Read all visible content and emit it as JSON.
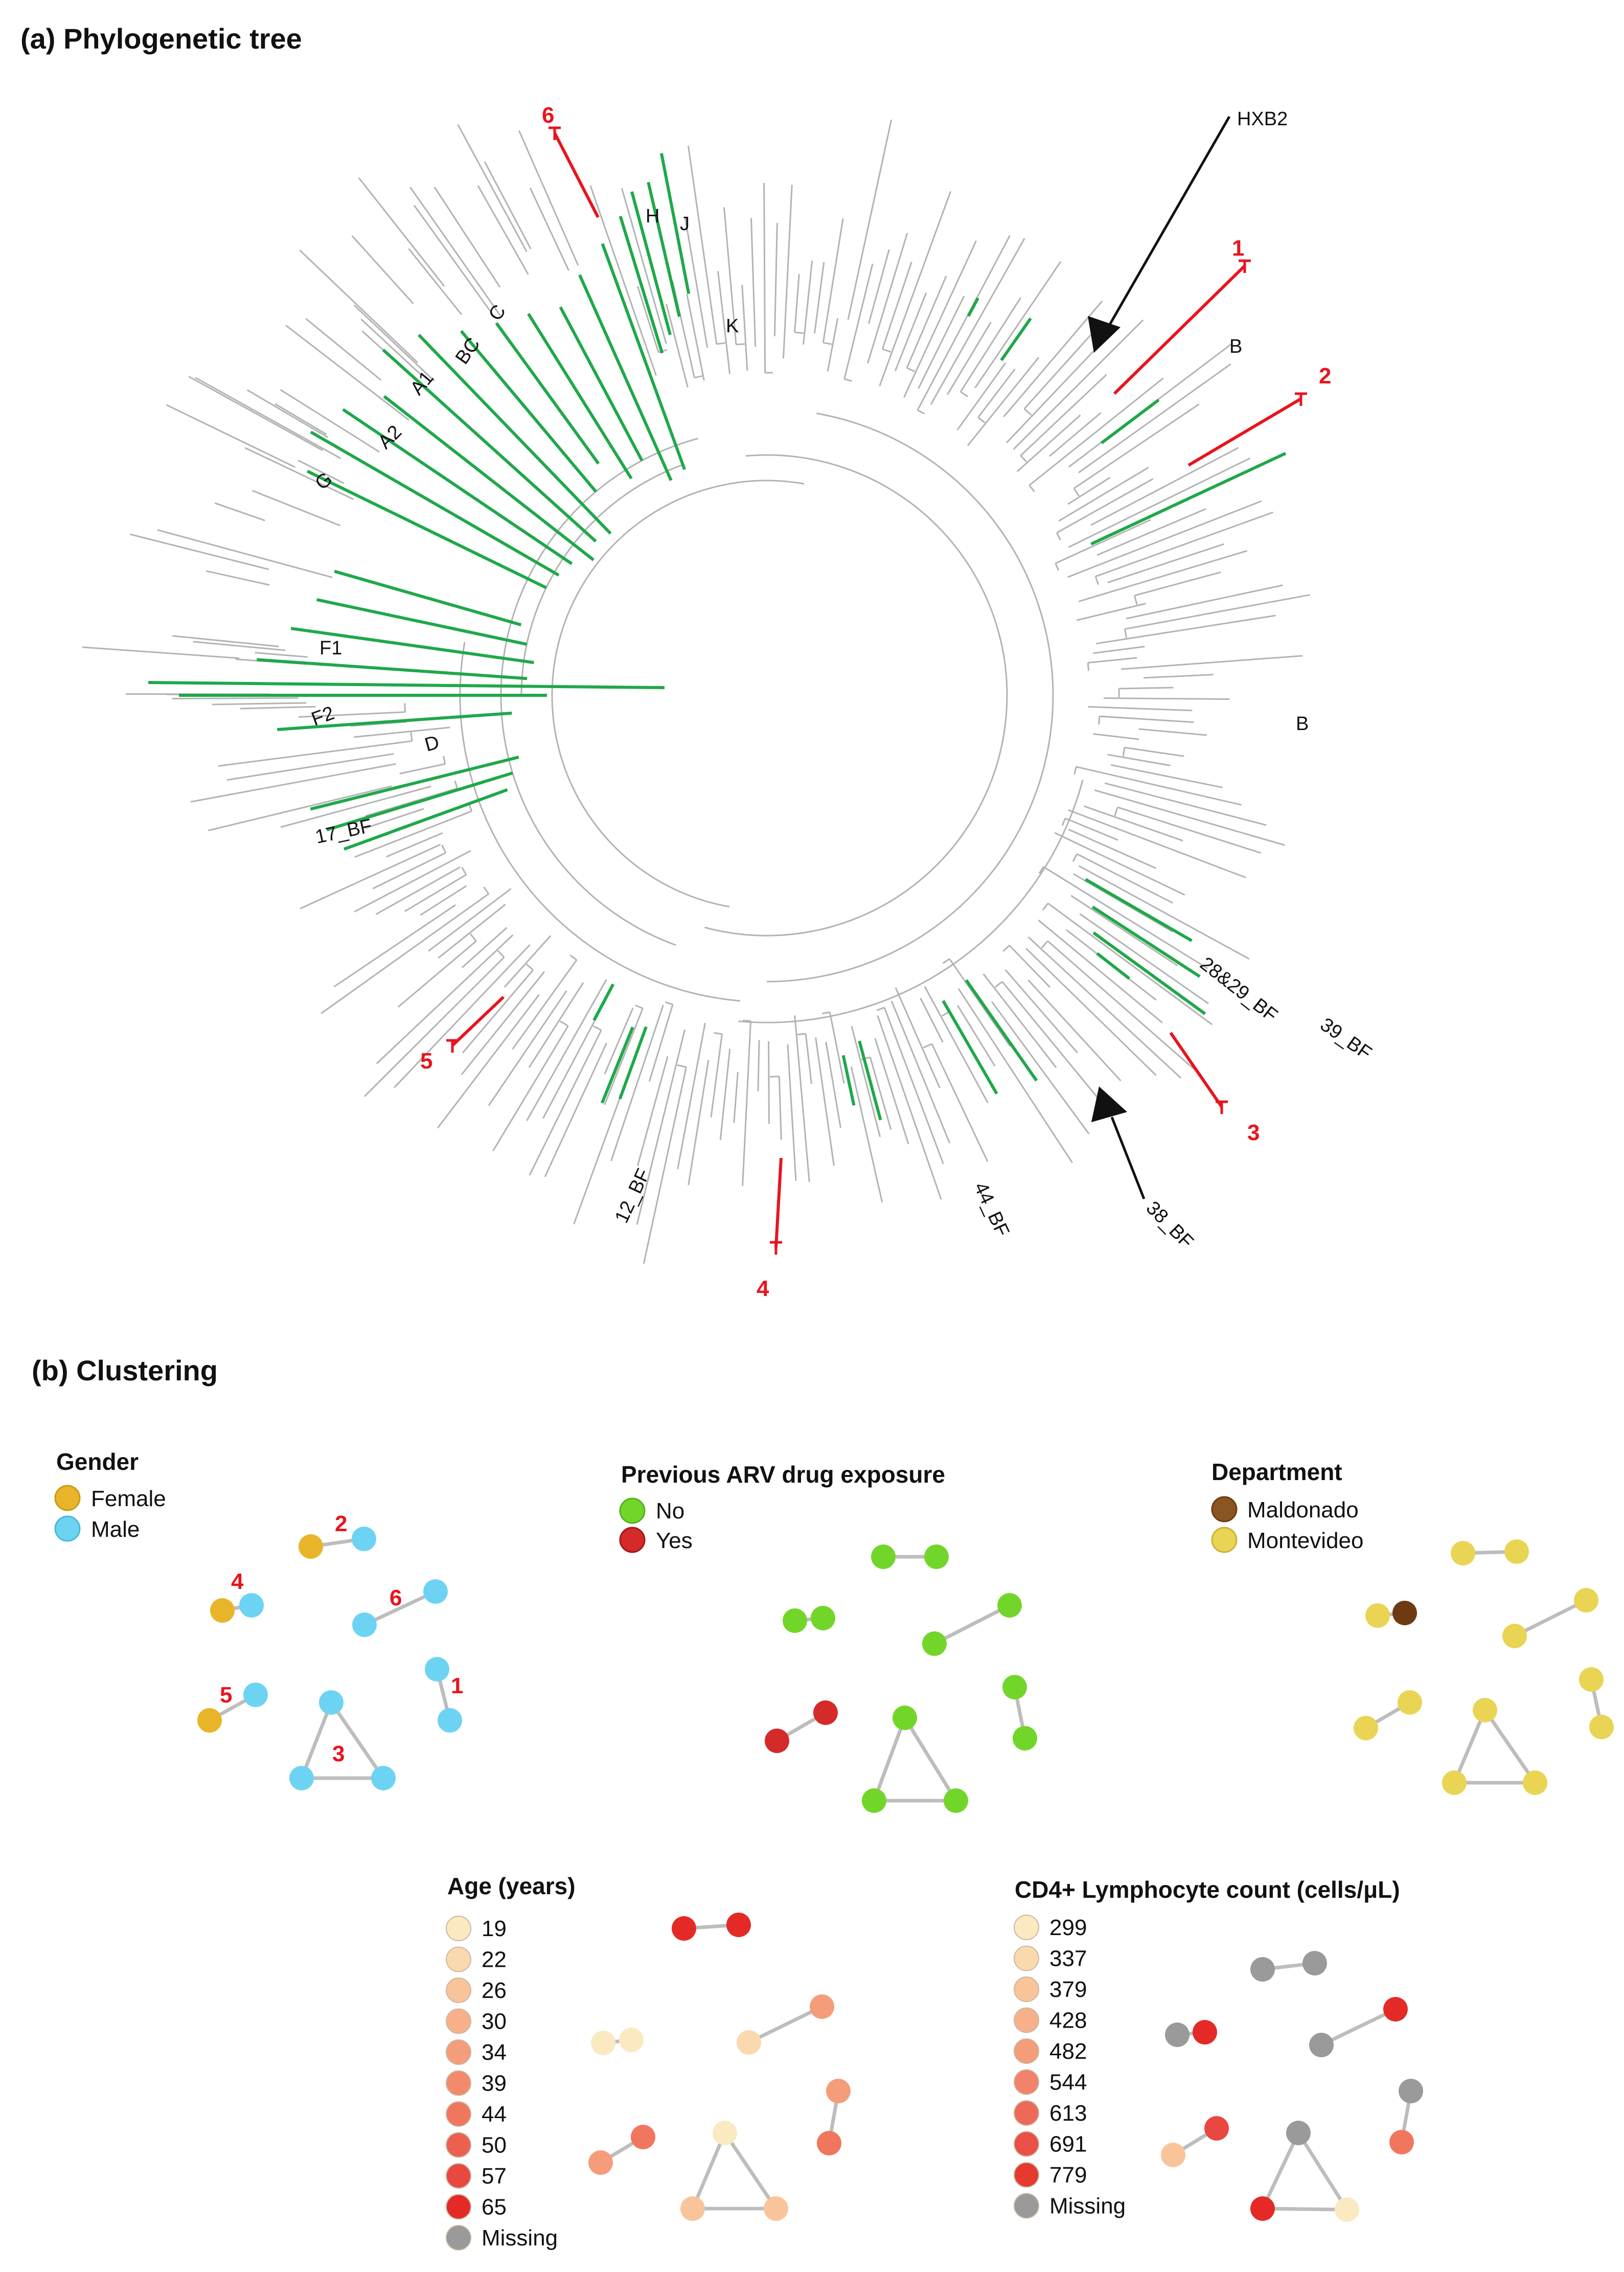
{
  "colors": {
    "gray_branch": "#b3b3b3",
    "green_branch": "#1fa84a",
    "red_branch": "#e8141e",
    "black": "#111111",
    "edge": "#bdbdbd"
  },
  "panel_a": {
    "title": "(a) Phylogenetic tree",
    "subtype_labels": [
      "H",
      "J",
      "K",
      "C",
      "BC",
      "A1",
      "A2",
      "G",
      "F1",
      "F2",
      "D",
      "17_BF",
      "12_BF",
      "44_BF",
      "38_BF",
      "28&29_BF",
      "39_BF",
      "B",
      "B"
    ],
    "reference_label": "HXB2",
    "cluster_labels": [
      "1",
      "2",
      "3",
      "4",
      "5",
      "6"
    ]
  },
  "panel_b": {
    "title": "(b) Clustering",
    "gender": {
      "title": "Gender",
      "legend": [
        {
          "label": "Female",
          "color": "#e8b52a"
        },
        {
          "label": "Male",
          "color": "#6dd3f2"
        }
      ],
      "cluster_labels": [
        "2",
        "4",
        "6",
        "5",
        "1",
        "3"
      ]
    },
    "arv": {
      "title": "Previous ARV drug exposure",
      "legend": [
        {
          "label": "No",
          "color": "#72d62a"
        },
        {
          "label": "Yes",
          "color": "#d42a2a"
        }
      ]
    },
    "department": {
      "title": "Department",
      "legend": [
        {
          "label": "Maldonado",
          "color": "#8a5520"
        },
        {
          "label": "Montevideo",
          "color": "#e9d454"
        }
      ]
    },
    "age": {
      "title": "Age (years)",
      "legend": [
        {
          "label": "19",
          "color": "#fbe9c2"
        },
        {
          "label": "22",
          "color": "#fbd9ae"
        },
        {
          "label": "26",
          "color": "#f9c49a"
        },
        {
          "label": "30",
          "color": "#f7b08a"
        },
        {
          "label": "34",
          "color": "#f59c7a"
        },
        {
          "label": "39",
          "color": "#f38a6c"
        },
        {
          "label": "44",
          "color": "#f0765e"
        },
        {
          "label": "50",
          "color": "#ec6050"
        },
        {
          "label": "57",
          "color": "#e84840"
        },
        {
          "label": "65",
          "color": "#e42a26"
        },
        {
          "label": "Missing",
          "color": "#9a9a9a"
        }
      ]
    },
    "cd4": {
      "title": "CD4+ Lymphocyte count (cells/μL)",
      "legend": [
        {
          "label": "299",
          "color": "#fbe9c2"
        },
        {
          "label": "337",
          "color": "#fbd9ae"
        },
        {
          "label": "379",
          "color": "#f9c49a"
        },
        {
          "label": "428",
          "color": "#f7b08a"
        },
        {
          "label": "482",
          "color": "#f59c7a"
        },
        {
          "label": "544",
          "color": "#f2826a"
        },
        {
          "label": "613",
          "color": "#ee6a58"
        },
        {
          "label": "691",
          "color": "#ea5046"
        },
        {
          "label": "779",
          "color": "#e53a30"
        },
        {
          "label": "Missing",
          "color": "#9a9a9a"
        }
      ]
    }
  }
}
